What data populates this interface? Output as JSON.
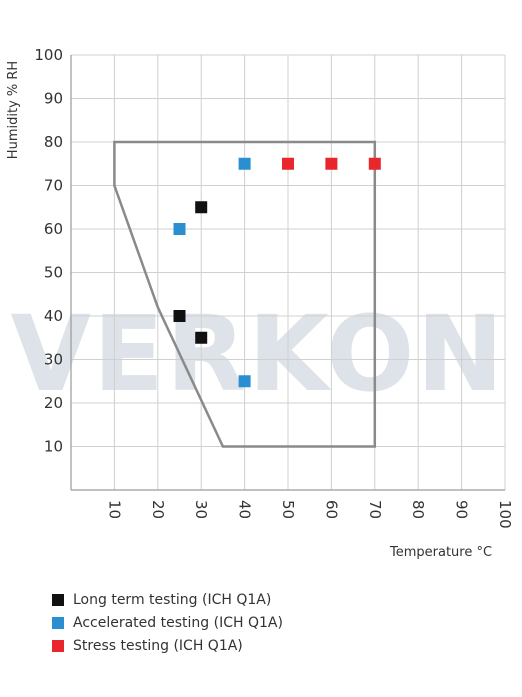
{
  "chart_data": {
    "type": "scatter",
    "watermark": "VERKON",
    "ylabel": "Humidity % RH",
    "xlabel": "Temperature °C",
    "xlim": [
      0,
      100
    ],
    "ylim": [
      0,
      100
    ],
    "x_ticks": [
      "10",
      "20",
      "30",
      "40",
      "50",
      "60",
      "70",
      "80",
      "90",
      "100"
    ],
    "y_ticks": [
      "10",
      "20",
      "30",
      "40",
      "50",
      "60",
      "70",
      "80",
      "90",
      "100"
    ],
    "grid": true,
    "legend_position": "bottom-left",
    "region": [
      [
        10,
        80
      ],
      [
        70,
        80
      ],
      [
        70,
        10
      ],
      [
        35,
        10
      ],
      [
        20,
        42
      ],
      [
        10,
        70
      ]
    ],
    "series": [
      {
        "name": "Long term testing (ICH Q1A)",
        "color": "#111111",
        "points": [
          [
            30,
            65
          ],
          [
            25,
            40
          ],
          [
            30,
            35
          ]
        ]
      },
      {
        "name": "Accelerated testing (ICH Q1A)",
        "color": "#2a8fd0",
        "points": [
          [
            40,
            75
          ],
          [
            25,
            60
          ],
          [
            40,
            25
          ]
        ]
      },
      {
        "name": "Stress testing (ICH Q1A)",
        "color": "#e8262b",
        "points": [
          [
            50,
            75
          ],
          [
            60,
            75
          ],
          [
            70,
            75
          ]
        ]
      }
    ]
  }
}
